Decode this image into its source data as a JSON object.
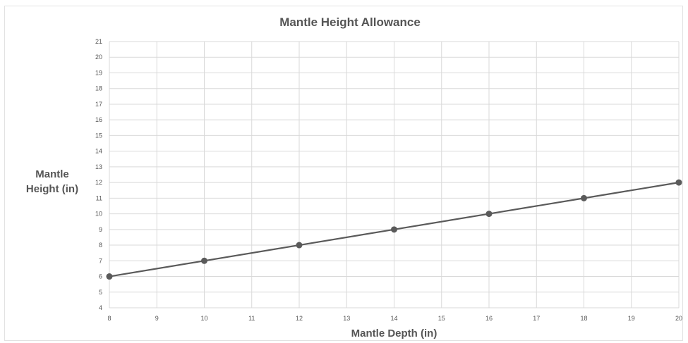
{
  "chart_data": {
    "type": "line",
    "title": "Mantle Height Allowance",
    "xlabel": "Mantle Depth (in)",
    "ylabel_lines": [
      "Mantle",
      "Height (in)"
    ],
    "xlim": [
      8,
      20
    ],
    "ylim": [
      4,
      21
    ],
    "x_ticks": [
      8,
      9,
      10,
      11,
      12,
      13,
      14,
      15,
      16,
      17,
      18,
      19,
      20
    ],
    "y_ticks": [
      4,
      5,
      6,
      7,
      8,
      9,
      10,
      11,
      12,
      13,
      14,
      15,
      16,
      17,
      18,
      19,
      20,
      21
    ],
    "grid": true,
    "legend": "none",
    "series": [
      {
        "x": [
          8,
          10,
          12,
          14,
          16,
          18,
          20
        ],
        "y": [
          6,
          7,
          8,
          9,
          10,
          11,
          12
        ],
        "color": "#5a5a5a"
      }
    ]
  }
}
